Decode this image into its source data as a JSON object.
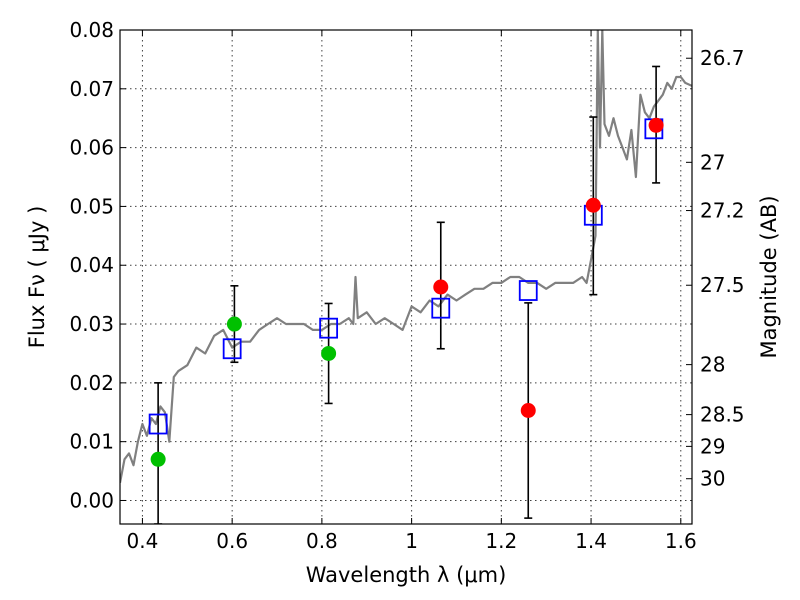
{
  "chart_data": {
    "type": "scatter",
    "x_label": "Wavelength  λ (μm)",
    "y_label": "Flux  Fν  ( μJy )",
    "y2_label": "Magnitude (AB)",
    "xlim": [
      0.35,
      1.625
    ],
    "ylim": [
      -0.004,
      0.08
    ],
    "x_ticks": [
      0.4,
      0.6,
      0.8,
      1.0,
      1.2,
      1.4,
      1.6
    ],
    "x_tick_labels": [
      "0.4",
      "0.6",
      "0.8",
      "1",
      "1.2",
      "1.4",
      "1.6"
    ],
    "y_ticks": [
      0.0,
      0.01,
      0.02,
      0.03,
      0.04,
      0.05,
      0.06,
      0.07,
      0.08
    ],
    "y_tick_labels": [
      "0.00",
      "0.01",
      "0.02",
      "0.03",
      "0.04",
      "0.05",
      "0.06",
      "0.07",
      "0.08"
    ],
    "y2_ticks": [
      {
        "flux": 0.0752,
        "label": "26.7"
      },
      {
        "flux": 0.0575,
        "label": "27"
      },
      {
        "flux": 0.0493,
        "label": "27.2"
      },
      {
        "flux": 0.0366,
        "label": "27.5"
      },
      {
        "flux": 0.0231,
        "label": "28"
      },
      {
        "flux": 0.0146,
        "label": "28.5"
      },
      {
        "flux": 0.0092,
        "label": "29"
      },
      {
        "flux": 0.0037,
        "label": "30"
      }
    ],
    "grid": true,
    "colors": {
      "template": "#808080",
      "model_box": "#0000ff",
      "hst_points": "#00c000",
      "ir_points": "#ff0000",
      "error_bar": "#000000"
    },
    "series": [
      {
        "kind": "line",
        "points": [
          [
            0.35,
            0.003
          ],
          [
            0.36,
            0.007
          ],
          [
            0.37,
            0.008
          ],
          [
            0.38,
            0.006
          ],
          [
            0.39,
            0.01
          ],
          [
            0.4,
            0.013
          ],
          [
            0.41,
            0.011
          ],
          [
            0.42,
            0.014
          ],
          [
            0.43,
            0.013
          ],
          [
            0.44,
            0.016
          ],
          [
            0.45,
            0.015
          ],
          [
            0.46,
            0.01
          ],
          [
            0.47,
            0.021
          ],
          [
            0.48,
            0.022
          ],
          [
            0.5,
            0.023
          ],
          [
            0.52,
            0.026
          ],
          [
            0.54,
            0.025
          ],
          [
            0.56,
            0.028
          ],
          [
            0.58,
            0.029
          ],
          [
            0.6,
            0.026
          ],
          [
            0.62,
            0.027
          ],
          [
            0.64,
            0.027
          ],
          [
            0.66,
            0.029
          ],
          [
            0.68,
            0.03
          ],
          [
            0.7,
            0.031
          ],
          [
            0.72,
            0.03
          ],
          [
            0.74,
            0.03
          ],
          [
            0.76,
            0.03
          ],
          [
            0.78,
            0.029
          ],
          [
            0.8,
            0.029
          ],
          [
            0.82,
            0.03
          ],
          [
            0.84,
            0.03
          ],
          [
            0.86,
            0.031
          ],
          [
            0.87,
            0.03
          ],
          [
            0.875,
            0.038
          ],
          [
            0.88,
            0.031
          ],
          [
            0.9,
            0.032
          ],
          [
            0.92,
            0.03
          ],
          [
            0.94,
            0.031
          ],
          [
            0.96,
            0.03
          ],
          [
            0.98,
            0.029
          ],
          [
            1.0,
            0.033
          ],
          [
            1.02,
            0.032
          ],
          [
            1.04,
            0.034
          ],
          [
            1.06,
            0.033
          ],
          [
            1.08,
            0.035
          ],
          [
            1.1,
            0.034
          ],
          [
            1.12,
            0.035
          ],
          [
            1.14,
            0.036
          ],
          [
            1.16,
            0.036
          ],
          [
            1.18,
            0.037
          ],
          [
            1.2,
            0.037
          ],
          [
            1.22,
            0.038
          ],
          [
            1.24,
            0.038
          ],
          [
            1.26,
            0.037
          ],
          [
            1.28,
            0.037
          ],
          [
            1.3,
            0.036
          ],
          [
            1.32,
            0.037
          ],
          [
            1.34,
            0.037
          ],
          [
            1.36,
            0.037
          ],
          [
            1.38,
            0.038
          ],
          [
            1.39,
            0.037
          ],
          [
            1.4,
            0.041
          ],
          [
            1.41,
            0.045
          ],
          [
            1.415,
            0.08
          ],
          [
            1.42,
            0.06
          ],
          [
            1.425,
            0.08
          ],
          [
            1.43,
            0.064
          ],
          [
            1.44,
            0.062
          ],
          [
            1.45,
            0.065
          ],
          [
            1.46,
            0.062
          ],
          [
            1.47,
            0.06
          ],
          [
            1.48,
            0.058
          ],
          [
            1.49,
            0.063
          ],
          [
            1.5,
            0.055
          ],
          [
            1.51,
            0.069
          ],
          [
            1.52,
            0.066
          ],
          [
            1.53,
            0.065
          ],
          [
            1.54,
            0.067
          ],
          [
            1.55,
            0.068
          ],
          [
            1.56,
            0.069
          ],
          [
            1.57,
            0.071
          ],
          [
            1.58,
            0.07
          ],
          [
            1.59,
            0.072
          ],
          [
            1.6,
            0.072
          ],
          [
            1.61,
            0.071
          ],
          [
            1.625,
            0.0705
          ]
        ]
      },
      {
        "kind": "boxes",
        "points": [
          [
            0.435,
            0.013
          ],
          [
            0.6,
            0.0258
          ],
          [
            0.815,
            0.0293
          ],
          [
            1.065,
            0.0327
          ],
          [
            1.26,
            0.0357
          ],
          [
            1.405,
            0.0485
          ],
          [
            1.54,
            0.0632
          ]
        ]
      },
      {
        "kind": "points",
        "points": [
          {
            "x": 0.435,
            "y": 0.007,
            "err_low": 0.011,
            "err_high": 0.013
          },
          {
            "x": 0.605,
            "y": 0.03,
            "err_low": 0.0065,
            "err_high": 0.0065
          },
          {
            "x": 0.815,
            "y": 0.025,
            "err_low": 0.0085,
            "err_high": 0.0085
          }
        ]
      },
      {
        "kind": "points",
        "points": [
          {
            "x": 1.065,
            "y": 0.0363,
            "err_low": 0.0105,
            "err_high": 0.011
          },
          {
            "x": 1.26,
            "y": 0.0153,
            "err_low": 0.0183,
            "err_high": 0.0183
          },
          {
            "x": 1.405,
            "y": 0.0502,
            "err_low": 0.0152,
            "err_high": 0.015
          },
          {
            "x": 1.545,
            "y": 0.0638,
            "err_low": 0.0098,
            "err_high": 0.01
          }
        ]
      }
    ]
  }
}
